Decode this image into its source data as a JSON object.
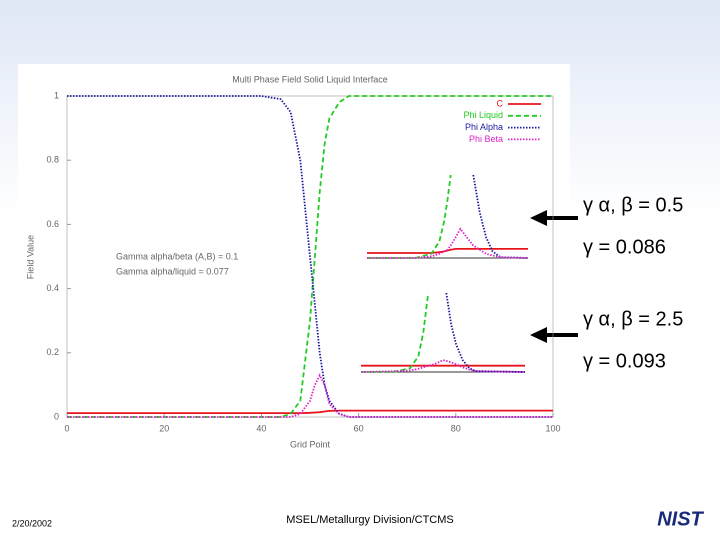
{
  "chart_data": {
    "type": "line",
    "title": "Multi Phase Field Solid Liquid Interface",
    "xlabel": "Grid Point",
    "ylabel": "Field Value",
    "xlim": [
      0,
      100
    ],
    "ylim": [
      0,
      1
    ],
    "xticks": [
      0,
      20,
      40,
      60,
      80,
      100
    ],
    "yticks": [
      0,
      0.2,
      0.4,
      0.6,
      0.8,
      1
    ],
    "grid": false,
    "legend": "upper right",
    "x": [
      0,
      10,
      20,
      30,
      40,
      44,
      46,
      48,
      50,
      51,
      52,
      53,
      54,
      56,
      58,
      60,
      70,
      80,
      90,
      100
    ],
    "series": [
      {
        "name": "C",
        "color": "#e8141c",
        "style": "solid",
        "values": [
          0.012,
          0.012,
          0.012,
          0.012,
          0.012,
          0.012,
          0.012,
          0.012,
          0.013,
          0.014,
          0.015,
          0.017,
          0.019,
          0.02,
          0.02,
          0.02,
          0.02,
          0.02,
          0.02,
          0.02
        ]
      },
      {
        "name": "Phi Liquid",
        "color": "#22cc22",
        "style": "dashed",
        "values": [
          0,
          0,
          0,
          0,
          0,
          0,
          0.01,
          0.05,
          0.3,
          0.5,
          0.7,
          0.85,
          0.93,
          0.98,
          1,
          1,
          1,
          1,
          1,
          1
        ]
      },
      {
        "name": "Phi Alpha",
        "color": "#1a1aa0",
        "style": "dotted",
        "values": [
          1,
          1,
          1,
          1,
          1,
          0.99,
          0.95,
          0.8,
          0.5,
          0.35,
          0.2,
          0.1,
          0.05,
          0.01,
          0,
          0,
          0,
          0,
          0,
          0
        ]
      },
      {
        "name": "Phi Beta",
        "color": "#dd22cc",
        "style": "dotted",
        "values": [
          0,
          0,
          0,
          0,
          0,
          0,
          0,
          0.01,
          0.05,
          0.1,
          0.13,
          0.1,
          0.04,
          0.01,
          0,
          0,
          0,
          0,
          0,
          0
        ]
      }
    ],
    "annotations": [
      "Gamma alpha/beta (A,B) = 0.1",
      "Gamma alpha/liquid = 0.077"
    ],
    "insets": [
      {
        "label": "γ α, β = 0.5",
        "sublabel": "γ = 0.086",
        "x": [
          0,
          30,
          40,
          45,
          48,
          50,
          52,
          55,
          58,
          62,
          66,
          70,
          74,
          78,
          83,
          100
        ],
        "series": [
          {
            "color": "#e8141c",
            "style": "solid",
            "values": [
              0.06,
              0.06,
              0.06,
              0.07,
              0.08,
              0.09,
              0.1,
              0.11,
              0.11,
              0.11,
              0.11,
              0.11,
              0.11,
              0.11,
              0.11,
              0.11
            ]
          },
          {
            "color": "#22cc22",
            "style": "dashed",
            "values": [
              0,
              0,
              0.05,
              0.2,
              0.45,
              0.7,
              1,
              null,
              null,
              null,
              null,
              null,
              null,
              null,
              null,
              null
            ]
          },
          {
            "color": "#1a1aa0",
            "style": "dotted",
            "values": [
              null,
              null,
              null,
              null,
              null,
              null,
              null,
              null,
              null,
              null,
              1,
              0.55,
              0.25,
              0.08,
              0.01,
              0
            ]
          },
          {
            "color": "#dd22cc",
            "style": "dotted",
            "values": [
              0,
              0,
              0.02,
              0.05,
              0.08,
              0.1,
              0.15,
              0.25,
              0.35,
              0.25,
              0.15,
              0.1,
              0.05,
              0.03,
              0.01,
              0
            ]
          }
        ]
      },
      {
        "label": "γ α, β = 2.5",
        "sublabel": "γ = 0.093",
        "x": [
          0,
          20,
          30,
          35,
          38,
          41,
          45,
          50,
          52,
          55,
          58,
          62,
          66,
          70,
          100
        ],
        "series": [
          {
            "color": "#e8141c",
            "style": "solid",
            "values": [
              0.08,
              0.08,
              0.08,
              0.08,
              0.08,
              0.08,
              0.08,
              0.08,
              0.08,
              0.08,
              0.08,
              0.08,
              0.08,
              0.08,
              0.08
            ]
          },
          {
            "color": "#22cc22",
            "style": "dashed",
            "values": [
              0,
              0,
              0.05,
              0.2,
              0.5,
              1,
              null,
              null,
              null,
              null,
              null,
              null,
              null,
              null,
              null
            ]
          },
          {
            "color": "#1a1aa0",
            "style": "dotted",
            "values": [
              null,
              null,
              null,
              null,
              null,
              null,
              null,
              null,
              1,
              0.6,
              0.35,
              0.15,
              0.05,
              0.01,
              0
            ]
          },
          {
            "color": "#dd22cc",
            "style": "dotted",
            "values": [
              0,
              0.01,
              0.02,
              0.04,
              0.06,
              0.08,
              0.1,
              0.15,
              0.14,
              0.12,
              0.1,
              0.06,
              0.03,
              0.01,
              0
            ]
          }
        ]
      }
    ]
  },
  "footer": {
    "date": "2/20/2002",
    "center": "MSEL/Metallurgy Division/CTCMS",
    "logo": "NIST"
  }
}
